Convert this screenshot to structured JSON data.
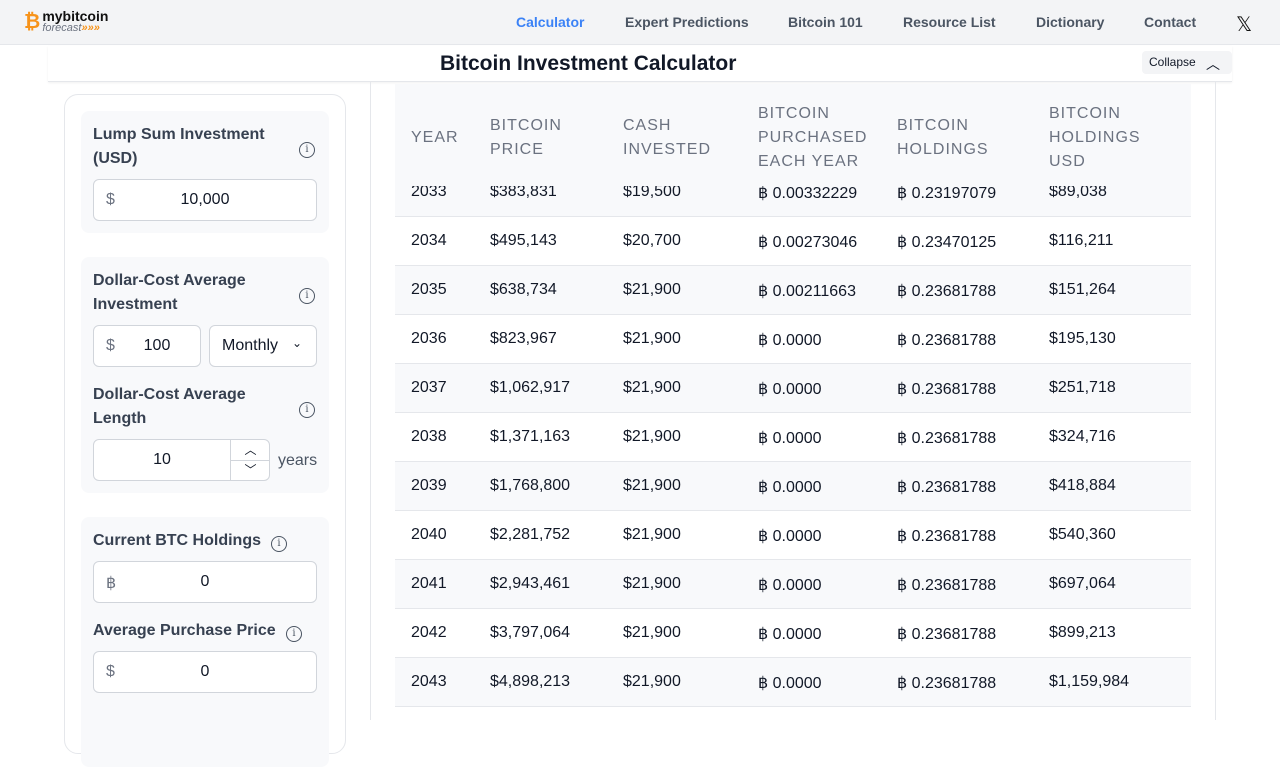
{
  "nav": {
    "logo_top": "mybitcoin",
    "logo_bottom": "forecast",
    "logo_arrows": "»»»",
    "links": [
      "Calculator",
      "Expert Predictions",
      "Bitcoin 101",
      "Resource List",
      "Dictionary",
      "Contact"
    ],
    "active": "Calculator",
    "active_color": "#3b82f6",
    "x_icon": "𝕏"
  },
  "title": "Bitcoin Investment Calculator",
  "collapse_label": "Collapse",
  "form": {
    "lump_label": "Lump Sum Investment (USD)",
    "lump_prefix": "$",
    "lump_value": "10,000",
    "dca_label": "Dollar-Cost Average Investment",
    "dca_prefix": "$",
    "dca_value": "100",
    "dca_freq": "Monthly",
    "len_label": "Dollar-Cost Average Length",
    "len_value": "10",
    "len_unit": "years",
    "btc_label": "Current BTC Holdings",
    "btc_prefix": "฿",
    "btc_value": "0",
    "avg_label": "Average Purchase Price",
    "avg_prefix": "$",
    "avg_value": "0"
  },
  "table": {
    "headers": [
      [
        "YEAR"
      ],
      [
        "BITCOIN",
        "PRICE"
      ],
      [
        "CASH",
        "INVESTED"
      ],
      [
        "BITCOIN",
        "PURCHASED",
        "EACH YEAR"
      ],
      [
        "BITCOIN",
        "HOLDINGS"
      ],
      [
        "BITCOIN",
        "HOLDINGS",
        "USD"
      ]
    ],
    "rows": [
      [
        "2033",
        "$383,831",
        "$19,500",
        "฿ 0.00332229",
        "฿ 0.23197079",
        "$89,038"
      ],
      [
        "2034",
        "$495,143",
        "$20,700",
        "฿ 0.00273046",
        "฿ 0.23470125",
        "$116,211"
      ],
      [
        "2035",
        "$638,734",
        "$21,900",
        "฿ 0.00211663",
        "฿ 0.23681788",
        "$151,264"
      ],
      [
        "2036",
        "$823,967",
        "$21,900",
        "฿ 0.0000",
        "฿ 0.23681788",
        "$195,130"
      ],
      [
        "2037",
        "$1,062,917",
        "$21,900",
        "฿ 0.0000",
        "฿ 0.23681788",
        "$251,718"
      ],
      [
        "2038",
        "$1,371,163",
        "$21,900",
        "฿ 0.0000",
        "฿ 0.23681788",
        "$324,716"
      ],
      [
        "2039",
        "$1,768,800",
        "$21,900",
        "฿ 0.0000",
        "฿ 0.23681788",
        "$418,884"
      ],
      [
        "2040",
        "$2,281,752",
        "$21,900",
        "฿ 0.0000",
        "฿ 0.23681788",
        "$540,360"
      ],
      [
        "2041",
        "$2,943,461",
        "$21,900",
        "฿ 0.0000",
        "฿ 0.23681788",
        "$697,064"
      ],
      [
        "2042",
        "$3,797,064",
        "$21,900",
        "฿ 0.0000",
        "฿ 0.23681788",
        "$899,213"
      ],
      [
        "2043",
        "$4,898,213",
        "$21,900",
        "฿ 0.0000",
        "฿ 0.23681788",
        "$1,159,984"
      ]
    ]
  }
}
